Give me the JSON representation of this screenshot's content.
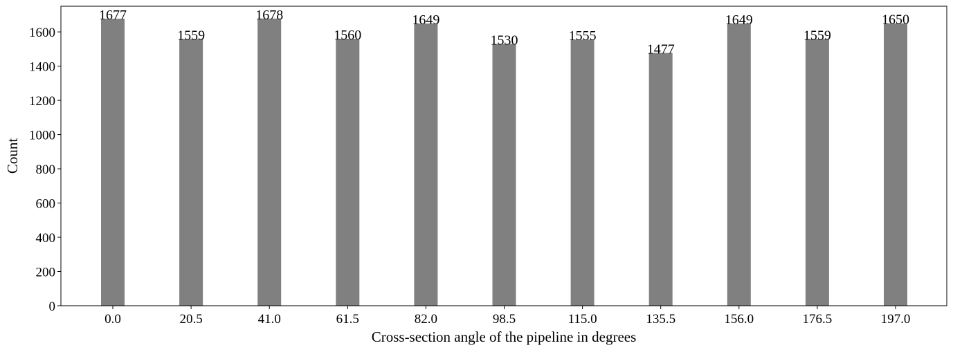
{
  "chart_data": {
    "type": "bar",
    "title": "",
    "xlabel": "Cross-section angle of the pipeline in degrees",
    "ylabel": "Count",
    "categories": [
      "0.0",
      "20.5",
      "41.0",
      "61.5",
      "82.0",
      "98.5",
      "115.0",
      "135.5",
      "156.0",
      "176.5",
      "197.0"
    ],
    "values": [
      1677,
      1559,
      1678,
      1560,
      1649,
      1530,
      1555,
      1477,
      1649,
      1559,
      1650
    ],
    "ylim": [
      0,
      1750
    ],
    "yticks": [
      0,
      200,
      400,
      600,
      800,
      1000,
      1200,
      1400,
      1600
    ],
    "bar_color": "#808080",
    "grid": false,
    "legend": false
  }
}
